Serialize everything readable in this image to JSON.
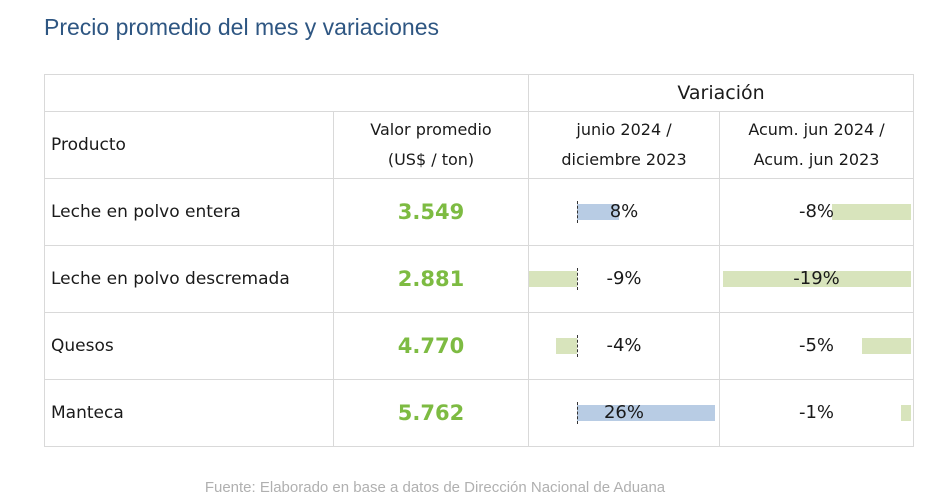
{
  "title": "Precio promedio del mes y variaciones",
  "header": {
    "variacion": "Variación",
    "producto": "Producto",
    "valor_line1": "Valor promedio",
    "valor_line2": "(US$ / ton)",
    "var1_line1": "junio 2024 /",
    "var1_line2": "diciembre 2023",
    "var2_line1": "Acum. jun 2024 /",
    "var2_line2": "Acum. jun 2023"
  },
  "rows": [
    {
      "producto": "Leche en polvo entera",
      "valor": "3.549",
      "var1": "8%",
      "var1_num": 8,
      "var2": "-8%",
      "var2_num": -8
    },
    {
      "producto": "Leche en polvo descremada",
      "valor": "2.881",
      "var1": "-9%",
      "var1_num": -9,
      "var2": "-19%",
      "var2_num": -19
    },
    {
      "producto": "Quesos",
      "valor": "4.770",
      "var1": "-4%",
      "var1_num": -4,
      "var2": "-5%",
      "var2_num": -5
    },
    {
      "producto": "Manteca",
      "valor": "5.762",
      "var1": "26%",
      "var1_num": 26,
      "var2": "-1%",
      "var2_num": -1
    }
  ],
  "colors": {
    "title": "#2e5682",
    "valor": "#7dbb42",
    "bar_positive": "#b8cce4",
    "bar_negative": "#d8e4bc"
  },
  "fuente": "Fuente: Elaborado en base a datos de Dirección Nacional de Aduana"
}
